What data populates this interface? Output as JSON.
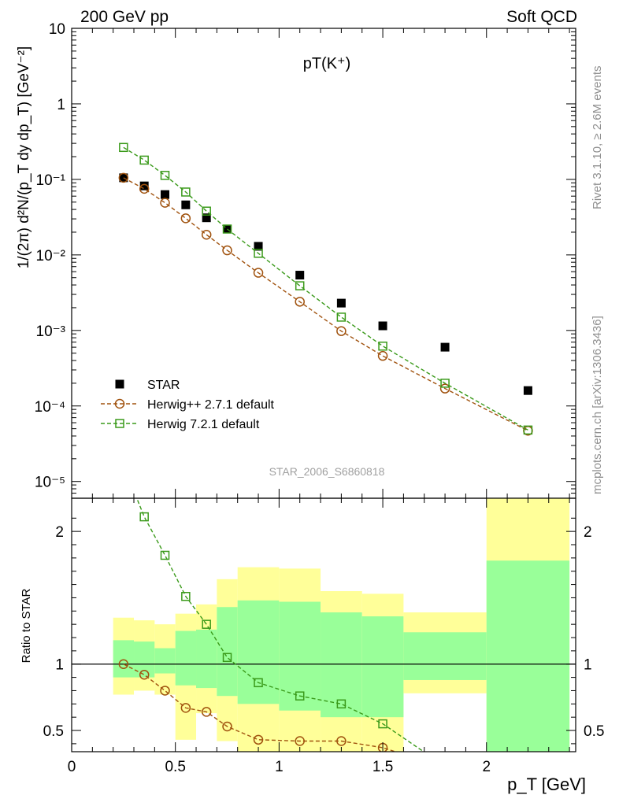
{
  "header": {
    "left_label": "200 GeV pp",
    "right_label": "Soft QCD"
  },
  "side_notes": {
    "rivet": "Rivet 3.1.10, ≥ 2.6M events",
    "mcplots": "mcplots.cern.ch [arXiv:1306.3436]"
  },
  "chart_data": [
    {
      "type": "scatter",
      "title": "pT(K⁺)",
      "watermark": "STAR_2006_S6860818",
      "ylabel": "1/(2π) d²N/(p_T dy dp_T) [GeV⁻²]",
      "yscale": "log",
      "ylim": [
        6e-06,
        10
      ],
      "xlim": [
        0,
        2.43
      ],
      "y_tick_labels": [
        "10⁻⁵",
        "10⁻⁴",
        "10⁻³",
        "10⁻²",
        "10⁻¹",
        "1",
        "10"
      ],
      "legend_position": "bottom-left",
      "series": [
        {
          "name": "STAR",
          "color": "#000000",
          "marker": "filled-square",
          "x": [
            0.25,
            0.35,
            0.45,
            0.55,
            0.65,
            0.75,
            0.9,
            1.1,
            1.3,
            1.5,
            1.8,
            2.2
          ],
          "y": [
            0.105,
            0.082,
            0.063,
            0.046,
            0.031,
            0.022,
            0.013,
            0.0054,
            0.0023,
            0.00115,
            0.0006,
            0.00016
          ]
        },
        {
          "name": "Herwig++ 2.7.1 default",
          "color": "#a0520e",
          "marker": "open-circle",
          "x": [
            0.25,
            0.35,
            0.45,
            0.55,
            0.65,
            0.75,
            0.9,
            1.1,
            1.3,
            1.5,
            1.8,
            2.2
          ],
          "y": [
            0.105,
            0.075,
            0.049,
            0.0305,
            0.0185,
            0.0115,
            0.0058,
            0.0024,
            0.00098,
            0.00046,
            0.00017,
            4.7e-05
          ]
        },
        {
          "name": "Herwig 7.2.1 default",
          "color": "#3a9a1a",
          "marker": "open-square",
          "x": [
            0.25,
            0.35,
            0.45,
            0.55,
            0.65,
            0.75,
            0.9,
            1.1,
            1.3,
            1.5,
            1.8,
            2.2
          ],
          "y": [
            0.265,
            0.18,
            0.113,
            0.068,
            0.038,
            0.022,
            0.0105,
            0.0039,
            0.0015,
            0.00062,
            0.0002,
            4.8e-05
          ]
        }
      ]
    },
    {
      "type": "line",
      "ylabel": "Ratio to STAR",
      "xlabel": "p_T [GeV]",
      "xlim": [
        0,
        2.43
      ],
      "ylim": [
        0.34,
        2.25
      ],
      "x_ticks": [
        0,
        0.5,
        1,
        1.5,
        2
      ],
      "x_tick_labels": [
        "0",
        "0.5",
        "1",
        "1.5",
        "2"
      ],
      "y_ticks": [
        0.5,
        1,
        2
      ],
      "y_tick_labels": [
        "0.5",
        "1",
        "2"
      ],
      "reference": 1,
      "bands": {
        "bins": [
          [
            0.2,
            0.3
          ],
          [
            0.3,
            0.4
          ],
          [
            0.4,
            0.5
          ],
          [
            0.5,
            0.6
          ],
          [
            0.6,
            0.7
          ],
          [
            0.7,
            0.8
          ],
          [
            0.8,
            1.0
          ],
          [
            1.0,
            1.2
          ],
          [
            1.2,
            1.4
          ],
          [
            1.4,
            1.6
          ],
          [
            1.6,
            2.0
          ],
          [
            2.0,
            2.4
          ]
        ],
        "yellow": [
          [
            0.77,
            1.35
          ],
          [
            0.8,
            1.33
          ],
          [
            0.77,
            1.3
          ],
          [
            0.43,
            1.38
          ],
          [
            0.63,
            1.45
          ],
          [
            0.42,
            1.64
          ],
          [
            0.34,
            1.73
          ],
          [
            0.34,
            1.72
          ],
          [
            0.34,
            1.55
          ],
          [
            0.34,
            1.53
          ],
          [
            0.78,
            1.39
          ],
          [
            0.34,
            2.25
          ]
        ],
        "green": [
          [
            0.9,
            1.18
          ],
          [
            0.9,
            1.17
          ],
          [
            0.93,
            1.12
          ],
          [
            0.84,
            1.25
          ],
          [
            0.82,
            1.26
          ],
          [
            0.76,
            1.43
          ],
          [
            0.7,
            1.48
          ],
          [
            0.65,
            1.47
          ],
          [
            0.6,
            1.39
          ],
          [
            0.6,
            1.36
          ],
          [
            0.88,
            1.24
          ],
          [
            0.34,
            1.78
          ]
        ],
        "yellow_color": "#ffff99",
        "green_color": "#99ff99"
      },
      "series": [
        {
          "name": "Herwig++ 2.7.1 default",
          "color": "#a0520e",
          "marker": "open-circle",
          "x": [
            0.25,
            0.35,
            0.45,
            0.55,
            0.65,
            0.75,
            0.9,
            1.1,
            1.3,
            1.5,
            1.8
          ],
          "y": [
            1.0,
            0.92,
            0.8,
            0.67,
            0.64,
            0.53,
            0.43,
            0.42,
            0.42,
            0.37,
            0.22
          ]
        },
        {
          "name": "Herwig 7.2.1 default",
          "color": "#3a9a1a",
          "marker": "open-square",
          "x": [
            0.25,
            0.35,
            0.45,
            0.55,
            0.65,
            0.75,
            0.9,
            1.1,
            1.3,
            1.5,
            1.8
          ],
          "y": [
            2.5,
            2.11,
            1.82,
            1.51,
            1.3,
            1.05,
            0.86,
            0.76,
            0.7,
            0.55,
            0.23
          ]
        }
      ]
    }
  ]
}
